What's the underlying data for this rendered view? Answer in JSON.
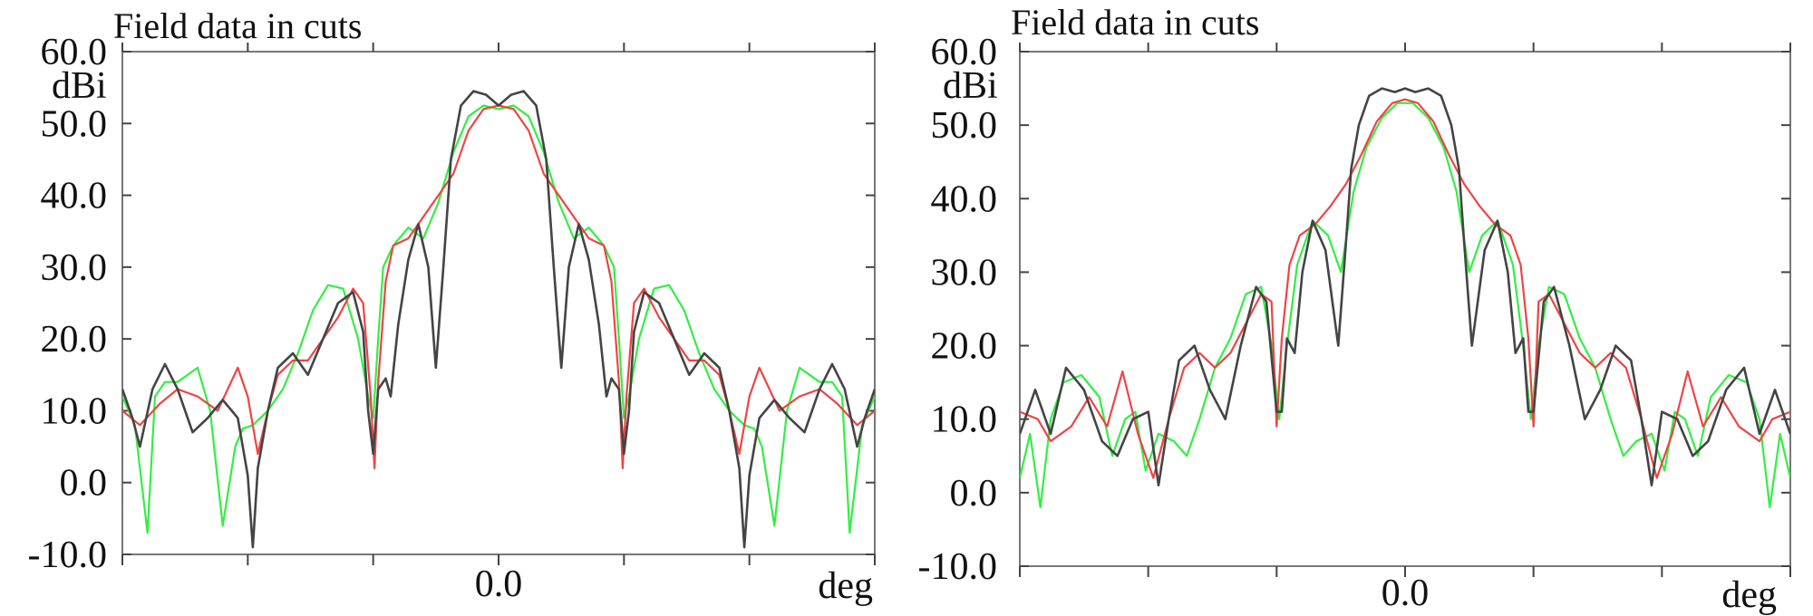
{
  "chart_data": [
    {
      "type": "line",
      "title": "Field data in cuts",
      "ylabel": "dBi",
      "xlabel": "deg",
      "ylim": [
        -10,
        60
      ],
      "xlim": [
        -15,
        15
      ],
      "y_tick_labels": [
        "60.0",
        "50.0",
        "40.0",
        "30.0",
        "20.0",
        "10.0",
        "0.0",
        "-10.0"
      ],
      "x_tick_labels": [
        "0.0"
      ],
      "grid": false,
      "series": [
        {
          "color": "#444444",
          "x": [
            -15,
            -14.6,
            -14.3,
            -13.8,
            -13.3,
            -12.8,
            -12.2,
            -11.6,
            -11.0,
            -10.4,
            -10.0,
            -9.8,
            -9.6,
            -9.2,
            -8.8,
            -8.2,
            -7.6,
            -7.0,
            -6.4,
            -5.8,
            -5.4,
            -5.2,
            -5.0,
            -4.8,
            -4.5,
            -4.3,
            -4.0,
            -3.6,
            -3.2,
            -2.8,
            -2.5,
            -2.2,
            -1.9,
            -1.5,
            -1.0,
            -0.5,
            0,
            0.5,
            1.0,
            1.5,
            1.9,
            2.2,
            2.5,
            2.8,
            3.2,
            3.6,
            4.0,
            4.3,
            4.5,
            4.8,
            5.0,
            5.2,
            5.4,
            5.8,
            6.4,
            7.0,
            7.6,
            8.2,
            8.8,
            9.2,
            9.6,
            9.8,
            10.0,
            10.4,
            11.0,
            11.6,
            12.2,
            12.8,
            13.3,
            13.8,
            14.3,
            14.6,
            15
          ],
          "values": [
            13,
            9,
            5,
            13,
            16.5,
            13,
            7,
            9,
            11.5,
            9,
            1,
            -9,
            2,
            10,
            16,
            18,
            15,
            20,
            25,
            26.5,
            21,
            10,
            4,
            13,
            14.5,
            12,
            22,
            31,
            36,
            30,
            16,
            30,
            45,
            52.5,
            54.5,
            54,
            52.5,
            54,
            54.5,
            52.5,
            45,
            30,
            16,
            30,
            36,
            31,
            22,
            12,
            14.5,
            13,
            4,
            10,
            21,
            26.5,
            25,
            20,
            15,
            18,
            16,
            10,
            2,
            -9,
            1,
            9,
            11.5,
            9,
            7,
            13,
            16.5,
            13,
            5,
            9,
            13
          ]
        },
        {
          "color": "#ee4444",
          "x": [
            -15,
            -14.3,
            -13.5,
            -12.8,
            -12.0,
            -11.2,
            -10.8,
            -10.4,
            -10.0,
            -9.6,
            -9.2,
            -8.8,
            -8.2,
            -7.6,
            -7.0,
            -6.4,
            -5.8,
            -5.4,
            -5.1,
            -4.95,
            -4.8,
            -4.5,
            -4.2,
            -3.6,
            -3.0,
            -2.4,
            -1.8,
            -1.2,
            -0.6,
            0,
            0.6,
            1.2,
            1.8,
            2.4,
            3.0,
            3.6,
            4.2,
            4.5,
            4.8,
            4.95,
            5.1,
            5.4,
            5.8,
            6.4,
            7.0,
            7.6,
            8.2,
            8.8,
            9.2,
            9.6,
            10.0,
            10.4,
            10.8,
            11.2,
            12.0,
            12.8,
            13.5,
            14.3,
            15
          ],
          "values": [
            10,
            8,
            11,
            13,
            12,
            10,
            13,
            16,
            12,
            4,
            10,
            15,
            17,
            17,
            20,
            23,
            27,
            25,
            12,
            2,
            14,
            28,
            33,
            34,
            37,
            40,
            43,
            49,
            52,
            52.5,
            52,
            49,
            43,
            40,
            37,
            34,
            33,
            28,
            14,
            2,
            12,
            25,
            27,
            23,
            20,
            17,
            17,
            15,
            10,
            4,
            12,
            16,
            13,
            10,
            12,
            13,
            11,
            8,
            10
          ]
        },
        {
          "color": "#33ee44",
          "x": [
            -15,
            -14.5,
            -14.0,
            -13.7,
            -13.3,
            -12.8,
            -12.0,
            -11.5,
            -11.0,
            -10.5,
            -10.2,
            -9.8,
            -9.2,
            -8.6,
            -8.0,
            -7.4,
            -6.8,
            -6.2,
            -5.6,
            -5.2,
            -5.0,
            -4.8,
            -4.6,
            -4.2,
            -3.6,
            -3.0,
            -2.4,
            -1.8,
            -1.2,
            -0.6,
            0,
            0.6,
            1.2,
            1.8,
            2.4,
            3.0,
            3.6,
            4.2,
            4.6,
            4.8,
            5.0,
            5.2,
            5.6,
            6.2,
            6.8,
            7.4,
            8.0,
            8.6,
            9.2,
            9.8,
            10.2,
            10.5,
            11.0,
            11.5,
            12.0,
            12.8,
            13.3,
            13.7,
            14.0,
            14.5,
            15
          ],
          "values": [
            12,
            8,
            -7,
            12,
            14,
            14,
            16,
            10,
            -6,
            5,
            7.5,
            8,
            10,
            13,
            18,
            24,
            27.5,
            27,
            20,
            12,
            9,
            20,
            30,
            33,
            35.5,
            34,
            39,
            46,
            51,
            52.5,
            52,
            52.5,
            51,
            46,
            39,
            34,
            35.5,
            33,
            30,
            20,
            9,
            12,
            20,
            27,
            27.5,
            24,
            18,
            13,
            10,
            8,
            7.5,
            5,
            -6,
            10,
            16,
            14,
            14,
            12,
            -7,
            8,
            12
          ]
        }
      ]
    },
    {
      "type": "line",
      "title": "Field data in cuts",
      "ylabel": "dBi",
      "xlabel": "deg",
      "ylim": [
        -10,
        60
      ],
      "xlim": [
        -15,
        15
      ],
      "y_tick_labels": [
        "60.0",
        "50.0",
        "40.0",
        "30.0",
        "20.0",
        "10.0",
        "0.0",
        "-10.0"
      ],
      "x_tick_labels": [
        "0.0"
      ],
      "grid": false,
      "series": [
        {
          "color": "#444444",
          "x": [
            -15,
            -14.4,
            -13.8,
            -13.2,
            -12.5,
            -11.8,
            -11.2,
            -10.6,
            -10.0,
            -9.6,
            -9.2,
            -8.8,
            -8.2,
            -7.6,
            -7.0,
            -6.4,
            -5.8,
            -5.4,
            -5.0,
            -4.8,
            -4.6,
            -4.3,
            -4.0,
            -3.6,
            -3.1,
            -2.6,
            -2.3,
            -2.1,
            -1.8,
            -1.4,
            -0.9,
            -0.4,
            0,
            0.4,
            0.9,
            1.4,
            1.8,
            2.1,
            2.3,
            2.6,
            3.1,
            3.6,
            4.0,
            4.3,
            4.6,
            4.8,
            5.0,
            5.4,
            5.8,
            6.4,
            7.0,
            7.6,
            8.2,
            8.8,
            9.2,
            9.6,
            10.0,
            10.6,
            11.2,
            11.8,
            12.5,
            13.2,
            13.8,
            14.4,
            15
          ],
          "values": [
            8,
            14,
            8,
            17,
            14,
            7,
            5,
            10,
            11,
            1,
            10,
            18,
            20,
            14,
            10,
            20,
            28,
            26,
            11,
            11,
            21,
            19,
            30,
            37,
            33,
            20,
            34,
            44,
            50,
            54,
            55,
            54.5,
            55,
            54.5,
            55,
            54,
            50,
            44,
            34,
            20,
            33,
            37,
            30,
            19,
            21,
            11,
            11,
            26,
            28,
            20,
            10,
            14,
            20,
            18,
            10,
            1,
            11,
            10,
            5,
            7,
            14,
            17,
            8,
            14,
            8
          ]
        },
        {
          "color": "#ee4444",
          "x": [
            -15,
            -14.3,
            -13.8,
            -13.0,
            -12.3,
            -11.6,
            -11.0,
            -10.4,
            -9.8,
            -9.2,
            -8.6,
            -8.0,
            -7.4,
            -6.8,
            -6.2,
            -5.6,
            -5.2,
            -5.0,
            -4.8,
            -4.5,
            -4.1,
            -3.5,
            -2.9,
            -2.3,
            -1.7,
            -1.1,
            -0.5,
            0,
            0.5,
            1.1,
            1.7,
            2.3,
            2.9,
            3.5,
            4.1,
            4.5,
            4.8,
            5.0,
            5.2,
            5.6,
            6.2,
            6.8,
            7.4,
            8.0,
            8.6,
            9.2,
            9.8,
            10.4,
            11.0,
            11.6,
            12.3,
            13.0,
            13.8,
            14.3,
            15
          ],
          "values": [
            11,
            10,
            7,
            9,
            13,
            9,
            16.5,
            8,
            2,
            10,
            17,
            19,
            17,
            19,
            23,
            27,
            26,
            9,
            21,
            31,
            35,
            36.5,
            39,
            42,
            46,
            50.5,
            53,
            53.5,
            53,
            50.5,
            46,
            42,
            39,
            36.5,
            35,
            31,
            21,
            9,
            26,
            27,
            23,
            19,
            17,
            19,
            17,
            10,
            2,
            8,
            16.5,
            9,
            13,
            9,
            7,
            10,
            11
          ]
        },
        {
          "color": "#33ee44",
          "x": [
            -15,
            -14.6,
            -14.2,
            -13.8,
            -13.3,
            -12.6,
            -11.9,
            -11.4,
            -10.9,
            -10.5,
            -10.1,
            -9.6,
            -9.0,
            -8.5,
            -8.0,
            -7.4,
            -6.8,
            -6.2,
            -5.6,
            -5.2,
            -4.9,
            -4.6,
            -4.2,
            -3.6,
            -3.0,
            -2.5,
            -2.0,
            -1.5,
            -0.9,
            -0.3,
            0,
            0.3,
            0.9,
            1.5,
            2.0,
            2.5,
            3.0,
            3.6,
            4.2,
            4.6,
            4.9,
            5.2,
            5.6,
            6.2,
            6.8,
            7.4,
            8.0,
            8.5,
            9.0,
            9.6,
            10.1,
            10.5,
            10.9,
            11.4,
            11.9,
            12.6,
            13.3,
            13.8,
            14.2,
            14.6,
            15
          ],
          "values": [
            2,
            8,
            -2,
            10,
            15,
            16,
            13,
            5,
            10,
            11,
            3,
            8,
            7,
            5,
            10,
            17,
            21,
            27,
            28,
            20,
            10,
            20,
            31,
            37,
            35,
            30,
            41,
            47,
            51,
            53,
            53,
            53,
            51,
            47,
            41,
            30,
            35,
            37,
            31,
            20,
            10,
            20,
            28,
            27,
            21,
            17,
            10,
            5,
            7,
            8,
            3,
            11,
            10,
            5,
            13,
            16,
            15,
            10,
            -2,
            8,
            2
          ]
        }
      ]
    }
  ]
}
